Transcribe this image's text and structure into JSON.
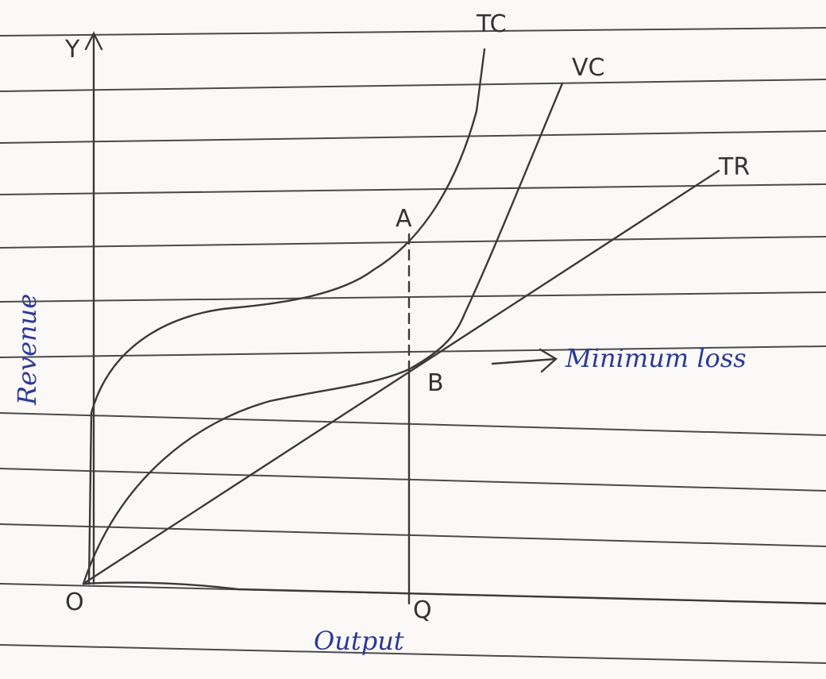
{
  "axes": {
    "y_axis_label": "Y",
    "origin_label": "O",
    "x_point_label": "Q",
    "y_title": "Revenue",
    "x_title": "Output"
  },
  "curves": {
    "tc": "TC",
    "vc": "VC",
    "tr": "TR"
  },
  "points": {
    "a": "A",
    "b": "B"
  },
  "annotation": "Minimum loss"
}
